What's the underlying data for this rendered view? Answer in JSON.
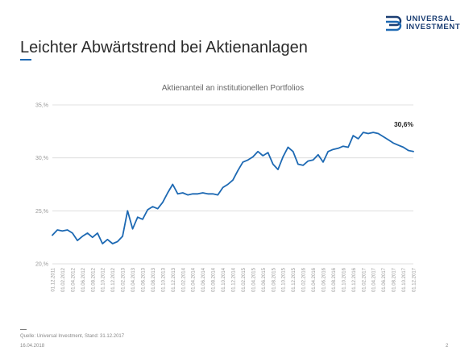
{
  "logo": {
    "line1": "UNIVERSAL",
    "line2": "INVESTMENT"
  },
  "slide": {
    "title": "Leichter Abwärtstrend bei Aktienanlagen",
    "source": "Quelle: Universal Investment, Stand: 31.12.2017",
    "date": "16.04.2018",
    "page": "2"
  },
  "colors": {
    "line": "#1d69b3",
    "grid": "#d9d9d9",
    "brand": "#1b3e73"
  },
  "chart_data": {
    "type": "line",
    "title": "Aktienanteil an institutionellen Portfolios",
    "xlabel": "",
    "ylabel": "",
    "ylim": [
      20,
      35
    ],
    "yticks": [
      "20,%",
      "25,%",
      "30,%",
      "35,%"
    ],
    "ytick_values": [
      20,
      25,
      30,
      35
    ],
    "grid": true,
    "legend": "none",
    "annotation": {
      "text": "30,6%",
      "x": "01.12.2017",
      "y": 30.6
    },
    "x": [
      "01.12.2011",
      "01.01.2012",
      "01.02.2012",
      "01.03.2012",
      "01.04.2012",
      "01.05.2012",
      "01.06.2012",
      "01.07.2012",
      "01.08.2012",
      "01.09.2012",
      "01.10.2012",
      "01.11.2012",
      "01.12.2012",
      "01.01.2013",
      "01.02.2013",
      "01.03.2013",
      "01.04.2013",
      "01.05.2013",
      "01.06.2013",
      "01.07.2013",
      "01.08.2013",
      "01.09.2013",
      "01.10.2013",
      "01.11.2013",
      "01.12.2013",
      "01.01.2014",
      "01.02.2014",
      "01.03.2014",
      "01.04.2014",
      "01.05.2014",
      "01.06.2014",
      "01.07.2014",
      "01.08.2014",
      "01.09.2014",
      "01.10.2014",
      "01.11.2014",
      "01.12.2014",
      "01.01.2015",
      "01.02.2015",
      "01.03.2015",
      "01.04.2015",
      "01.05.2015",
      "01.06.2015",
      "01.07.2015",
      "01.08.2015",
      "01.09.2015",
      "01.10.2015",
      "01.11.2015",
      "01.12.2015",
      "01.01.2016",
      "01.02.2016",
      "01.03.2016",
      "01.04.2016",
      "01.05.2016",
      "01.06.2016",
      "01.07.2016",
      "01.08.2016",
      "01.09.2016",
      "01.10.2016",
      "01.11.2016",
      "01.12.2016",
      "01.01.2017",
      "01.02.2017",
      "01.03.2017",
      "01.04.2017",
      "01.05.2017",
      "01.06.2017",
      "01.07.2017",
      "01.08.2017",
      "01.09.2017",
      "01.10.2017",
      "01.11.2017",
      "01.12.2017"
    ],
    "xtick_labels": [
      "01.12.2011",
      "01.02.2012",
      "01.04.2012",
      "01.06.2012",
      "01.08.2012",
      "01.10.2012",
      "01.12.2012",
      "01.02.2013",
      "01.04.2013",
      "01.06.2013",
      "01.08.2013",
      "01.10.2013",
      "01.12.2013",
      "01.02.2014",
      "01.04.2014",
      "01.06.2014",
      "01.08.2014",
      "01.10.2014",
      "01.12.2014",
      "01.02.2015",
      "01.04.2015",
      "01.06.2015",
      "01.08.2015",
      "01.10.2015",
      "01.12.2015",
      "01.02.2016",
      "01.04.2016",
      "01.06.2016",
      "01.08.2016",
      "01.10.2016",
      "01.12.2016",
      "01.02.2017",
      "01.04.2017",
      "01.06.2017",
      "01.08.2017",
      "01.10.2017",
      "01.12.2017"
    ],
    "series": [
      {
        "values": [
          22.7,
          23.2,
          23.1,
          23.2,
          22.9,
          22.2,
          22.6,
          22.9,
          22.5,
          22.9,
          21.9,
          22.3,
          21.9,
          22.1,
          22.6,
          25.0,
          23.3,
          24.4,
          24.2,
          25.1,
          25.4,
          25.2,
          25.8,
          26.7,
          27.5,
          26.6,
          26.7,
          26.5,
          26.6,
          26.6,
          26.7,
          26.6,
          26.6,
          26.5,
          27.2,
          27.5,
          27.9,
          28.8,
          29.6,
          29.8,
          30.1,
          30.6,
          30.2,
          30.5,
          29.4,
          28.9,
          30.1,
          31.0,
          30.6,
          29.4,
          29.3,
          29.7,
          29.8,
          30.3,
          29.6,
          30.6,
          30.8,
          30.9,
          31.1,
          31.0,
          32.1,
          31.8,
          32.4,
          32.3,
          32.4,
          32.3,
          32.0,
          31.7,
          31.4,
          31.2,
          31.0,
          30.7,
          30.6
        ]
      }
    ]
  }
}
